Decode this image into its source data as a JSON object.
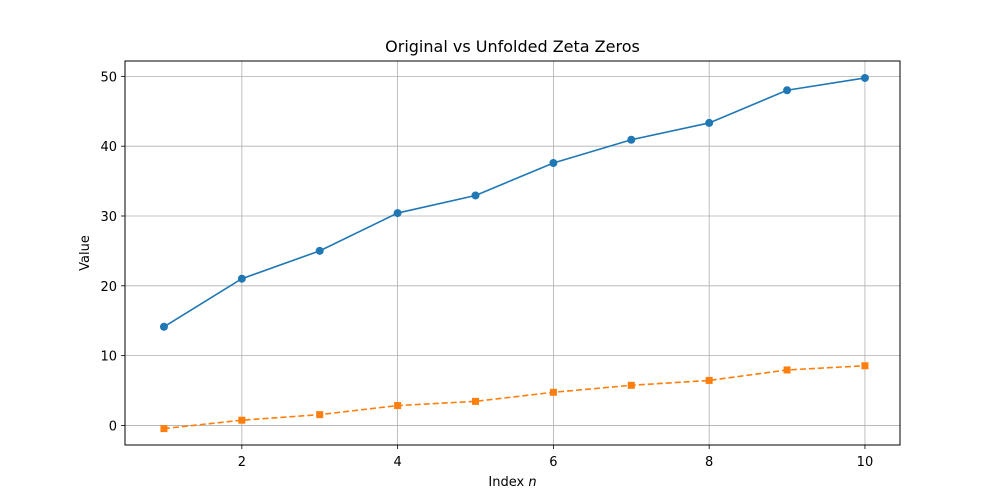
{
  "chart_data": {
    "type": "line",
    "title": "Original vs Unfolded Zeta Zeros",
    "xlabel_text": "Index ",
    "xlabel_var": "n",
    "ylabel": "Value",
    "xlim": [
      0.5,
      10.45
    ],
    "ylim": [
      -2.8,
      52.2
    ],
    "xticks": [
      2,
      4,
      6,
      8,
      10
    ],
    "yticks": [
      0,
      10,
      20,
      30,
      40,
      50
    ],
    "grid": true,
    "x": [
      1,
      2,
      3,
      4,
      5,
      6,
      7,
      8,
      9,
      10
    ],
    "series": [
      {
        "values": [
          14.13,
          21.02,
          25.01,
          30.42,
          32.94,
          37.59,
          40.92,
          43.33,
          48.01,
          49.77
        ],
        "color": "#1f77b4",
        "linestyle": "solid",
        "marker": "circle"
      },
      {
        "values": [
          -0.45,
          0.75,
          1.55,
          2.85,
          3.45,
          4.75,
          5.75,
          6.45,
          7.95,
          8.55
        ],
        "color": "#ff7f0e",
        "linestyle": "dashed",
        "marker": "square"
      }
    ]
  }
}
